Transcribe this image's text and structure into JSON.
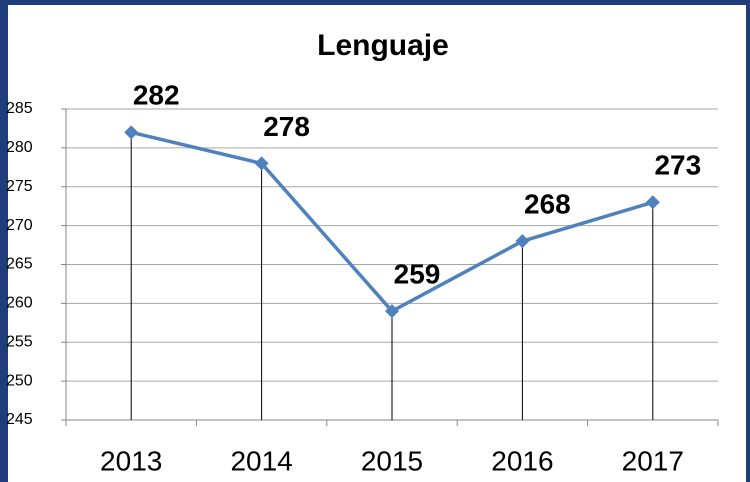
{
  "chart_data": {
    "type": "line",
    "title": "Lenguaje",
    "categories": [
      "2013",
      "2014",
      "2015",
      "2016",
      "2017"
    ],
    "series": [
      {
        "name": "Lenguaje",
        "color": "#4f81bd",
        "values": [
          282,
          278,
          259,
          268,
          273
        ]
      }
    ],
    "ylim": [
      245,
      285
    ],
    "yticks": [
      245,
      250,
      255,
      260,
      265,
      270,
      275,
      280,
      285
    ],
    "grid": true,
    "drop_lines": true
  }
}
